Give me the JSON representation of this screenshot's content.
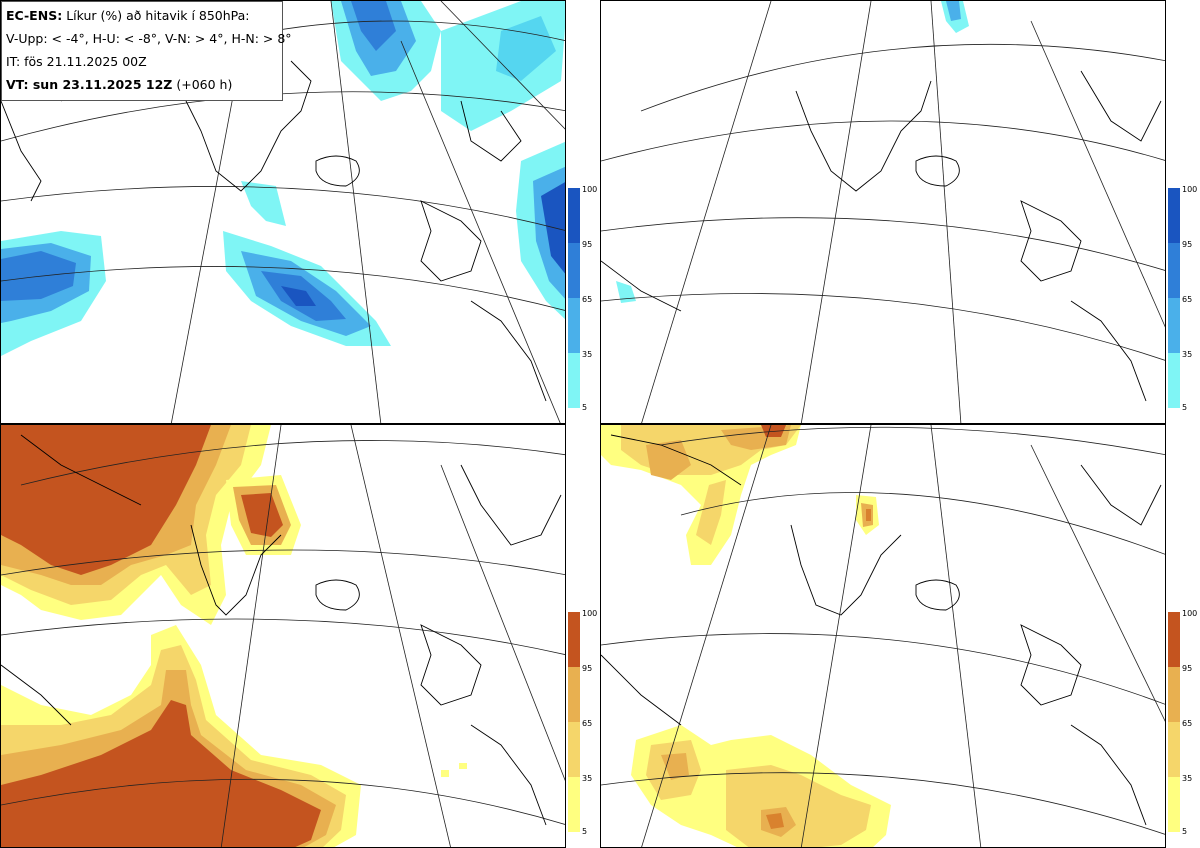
{
  "info": {
    "model": "EC-ENS:",
    "title": "Líkur (%) að hitavik í 850hPa:",
    "thresholds": "V-Upp: < -4°, H-U: < -8°, V-N: > 4°, H-N: > 8°",
    "issued": "IT: fös 21.11.2025 00Z",
    "valid": "VT: sun 23.11.2025 12Z",
    "lead": "(+060 h)"
  },
  "colors": {
    "cold": [
      "#7ff5f5",
      "#55d6f0",
      "#4ab0ea",
      "#2f7fd8",
      "#1a55c0"
    ],
    "warm": [
      "#ffff80",
      "#f5d66a",
      "#e8b050",
      "#d9822e",
      "#c4541f"
    ]
  },
  "panels": [
    {
      "id": "cold-4",
      "label": "V-Upp",
      "scale": "cold",
      "ticks": [
        "100",
        "95",
        "65",
        "35",
        "5"
      ]
    },
    {
      "id": "cold-8",
      "label": "H-U",
      "scale": "cold",
      "ticks": [
        "100",
        "95",
        "65",
        "35",
        "5"
      ]
    },
    {
      "id": "warm-4",
      "label": "V-N",
      "scale": "warm",
      "ticks": [
        "100",
        "95",
        "65",
        "35",
        "5"
      ]
    },
    {
      "id": "warm-8",
      "label": "H-N",
      "scale": "warm",
      "ticks": [
        "100",
        "95",
        "65",
        "35",
        "5"
      ]
    }
  ]
}
